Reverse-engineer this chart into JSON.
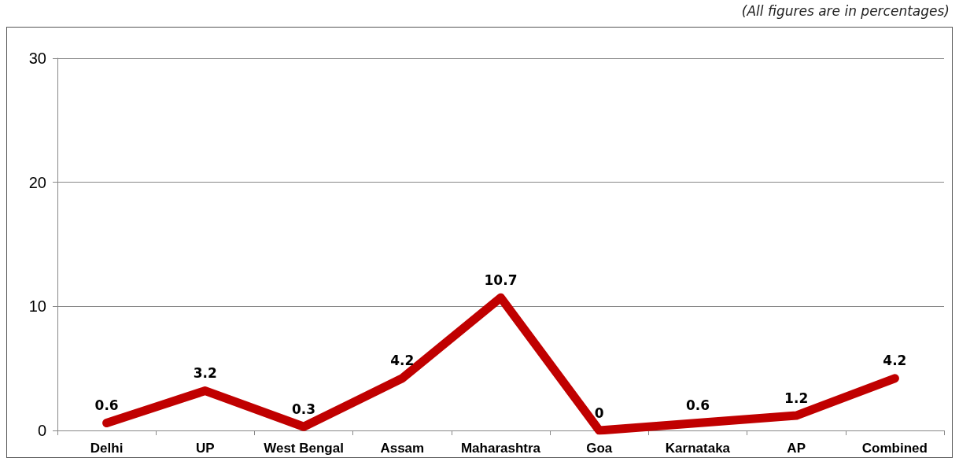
{
  "chart_data": {
    "type": "line",
    "annotations": [
      "(All figures are in percentages)"
    ],
    "categories": [
      "Delhi",
      "UP",
      "West Bengal",
      "Assam",
      "Maharashtra",
      "Goa",
      "Karnataka",
      "AP",
      "Combined"
    ],
    "series": [
      {
        "color": "#c00000",
        "values": [
          0.6,
          3.2,
          0.3,
          4.2,
          10.7,
          0,
          0.6,
          1.2,
          4.2
        ]
      }
    ],
    "ylim": [
      0,
      30
    ],
    "yticks": [
      0,
      10,
      20,
      30
    ],
    "grid": "y",
    "marker": "none",
    "line_style": "solid",
    "data_labels": true
  }
}
